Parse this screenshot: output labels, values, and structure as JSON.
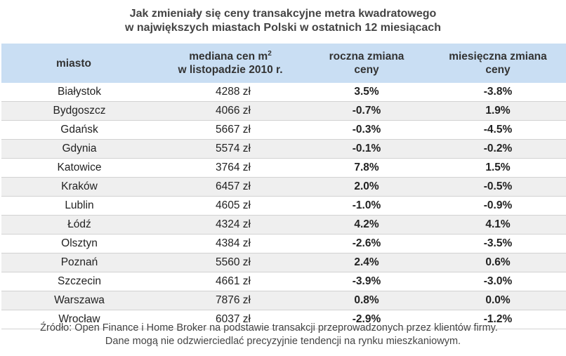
{
  "title": {
    "line1": "Jak zmieniały się ceny transakcyjne metra kwadratowego",
    "line2": "w największych miastach Polski w ostatnich 12 miesiącach"
  },
  "table": {
    "headers": {
      "city": "miasto",
      "median_line1": "mediana cen m",
      "median_sup": "2",
      "median_line2": "w listopadzie 2010 r.",
      "annual_line1": "roczna zmiana",
      "annual_line2": "ceny",
      "monthly_line1": "miesięczna zmiana",
      "monthly_line2": "ceny"
    },
    "rows": [
      {
        "city": "Białystok",
        "median": "4288 zł",
        "annual": "3.5%",
        "monthly": "-3.8%"
      },
      {
        "city": "Bydgoszcz",
        "median": "4066 zł",
        "annual": "-0.7%",
        "monthly": "1.9%"
      },
      {
        "city": "Gdańsk",
        "median": "5667 zł",
        "annual": "-0.3%",
        "monthly": "-4.5%"
      },
      {
        "city": "Gdynia",
        "median": "5574 zł",
        "annual": "-0.1%",
        "monthly": "-0.2%"
      },
      {
        "city": "Katowice",
        "median": "3764 zł",
        "annual": "7.8%",
        "monthly": "1.5%"
      },
      {
        "city": "Kraków",
        "median": "6457 zł",
        "annual": "2.0%",
        "monthly": "-0.5%"
      },
      {
        "city": "Lublin",
        "median": "4605 zł",
        "annual": "-1.0%",
        "monthly": "-0.9%"
      },
      {
        "city": "Łódź",
        "median": "4324 zł",
        "annual": "4.2%",
        "monthly": "4.1%"
      },
      {
        "city": "Olsztyn",
        "median": "4384 zł",
        "annual": "-2.6%",
        "monthly": "-3.5%"
      },
      {
        "city": "Poznań",
        "median": "5560 zł",
        "annual": "2.4%",
        "monthly": "0.6%"
      },
      {
        "city": "Szczecin",
        "median": "4661 zł",
        "annual": "-3.9%",
        "monthly": "-3.0%"
      },
      {
        "city": "Warszawa",
        "median": "7876 zł",
        "annual": "0.8%",
        "monthly": "0.0%"
      },
      {
        "city": "Wrocław",
        "median": "6037 zł",
        "annual": "-2.9%",
        "monthly": "-1.2%"
      }
    ]
  },
  "source": {
    "line1": "Źródło: Open Finance i Home Broker na podstawie transakcji przeprowadzonych przez klientów firmy.",
    "line2": "Dane mogą nie odzwierciedlać precyzyjnie tendencji na rynku mieszkaniowym."
  },
  "chart_data": {
    "type": "table",
    "title": "Jak zmieniały się ceny transakcyjne metra kwadratowego w największych miastach Polski w ostatnich 12 miesiącach",
    "columns": [
      "miasto",
      "mediana cen m2 w listopadzie 2010 r.",
      "roczna zmiana ceny",
      "miesięczna zmiana ceny"
    ],
    "categories": [
      "Białystok",
      "Bydgoszcz",
      "Gdańsk",
      "Gdynia",
      "Katowice",
      "Kraków",
      "Lublin",
      "Łódź",
      "Olsztyn",
      "Poznań",
      "Szczecin",
      "Warszawa",
      "Wrocław"
    ],
    "series": [
      {
        "name": "mediana cen m2 w listopadzie 2010 r.",
        "values": [
          4288,
          4066,
          5667,
          5574,
          3764,
          6457,
          4605,
          4324,
          4384,
          5560,
          4661,
          7876,
          6037
        ]
      },
      {
        "name": "roczna zmiana ceny",
        "values": [
          3.5,
          -0.7,
          -0.3,
          -0.1,
          7.8,
          2.0,
          -1.0,
          4.2,
          -2.6,
          2.4,
          -3.9,
          0.8,
          -2.9
        ]
      },
      {
        "name": "miesięczna zmiana ceny",
        "values": [
          -3.8,
          1.9,
          -4.5,
          -0.2,
          1.5,
          -0.5,
          -0.9,
          4.1,
          -3.5,
          0.6,
          -3.0,
          0.0,
          -1.2
        ]
      }
    ]
  }
}
